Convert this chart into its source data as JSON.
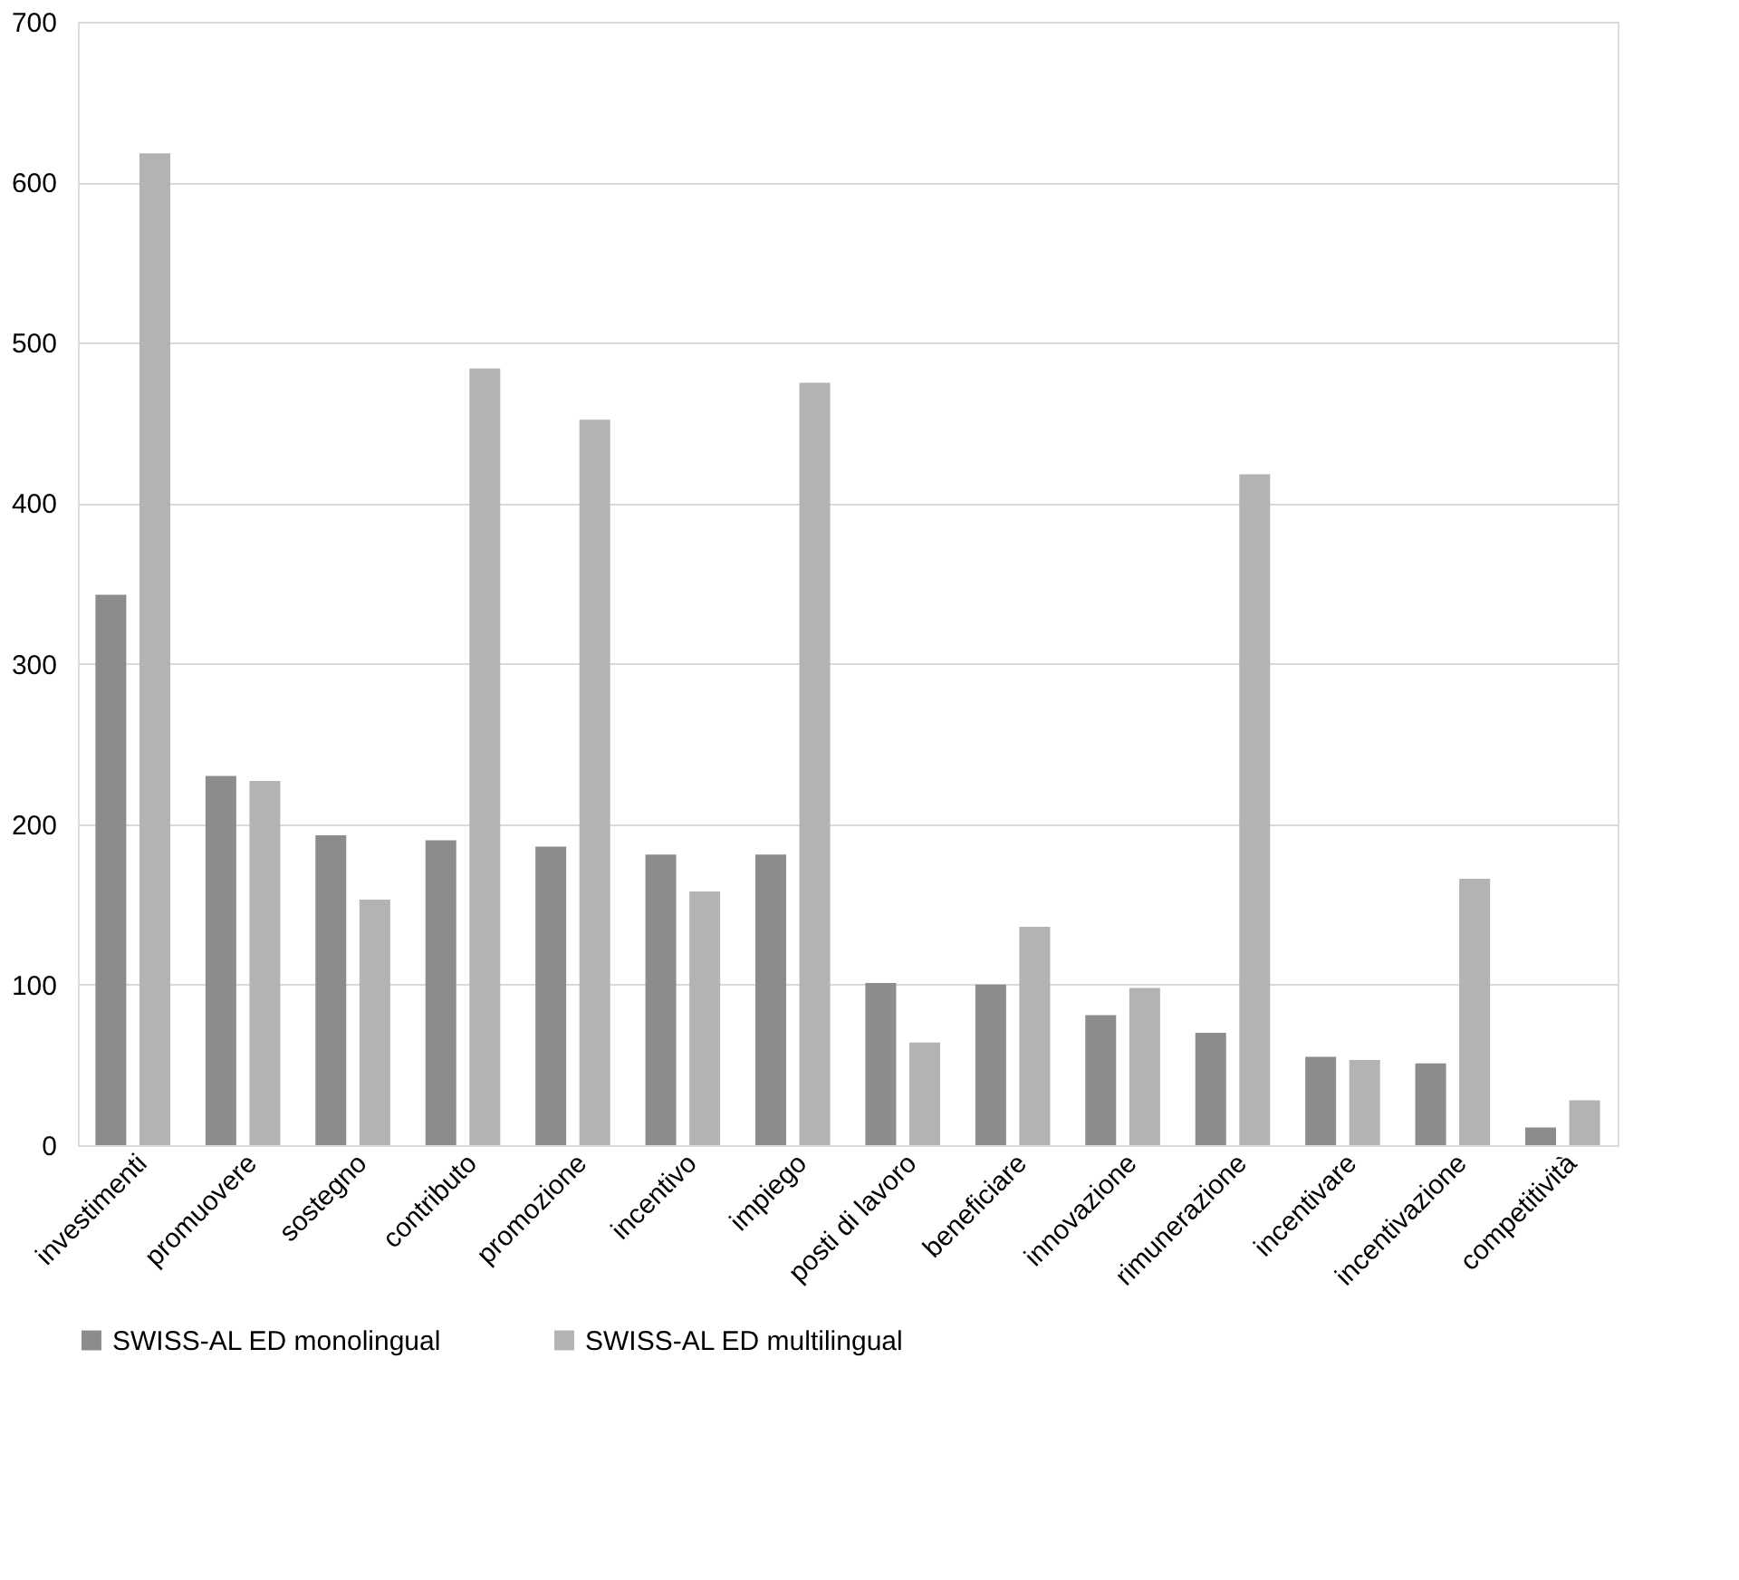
{
  "chart_data": {
    "type": "bar",
    "categories": [
      "investimenti",
      "promuovere",
      "sostegno",
      "contributo",
      "promozione",
      "incentivo",
      "impiego",
      "posti di lavoro",
      "beneficiare",
      "innovazione",
      "rimunerazione",
      "incentivare",
      "incentivazione",
      "competitività"
    ],
    "series": [
      {
        "name": "SWISS-AL ED monolingual",
        "color": "#8c8c8c",
        "values": [
          343,
          230,
          193,
          190,
          186,
          181,
          181,
          101,
          100,
          81,
          70,
          55,
          51,
          11
        ]
      },
      {
        "name": "SWISS-AL ED multilingual",
        "color": "#b3b3b3",
        "values": [
          618,
          227,
          153,
          484,
          452,
          158,
          475,
          64,
          136,
          98,
          418,
          53,
          166,
          28
        ]
      }
    ],
    "ylim": [
      0,
      700
    ],
    "yticks": [
      0,
      100,
      200,
      300,
      400,
      500,
      600,
      700
    ],
    "grid": "y",
    "legend": "bottom"
  }
}
